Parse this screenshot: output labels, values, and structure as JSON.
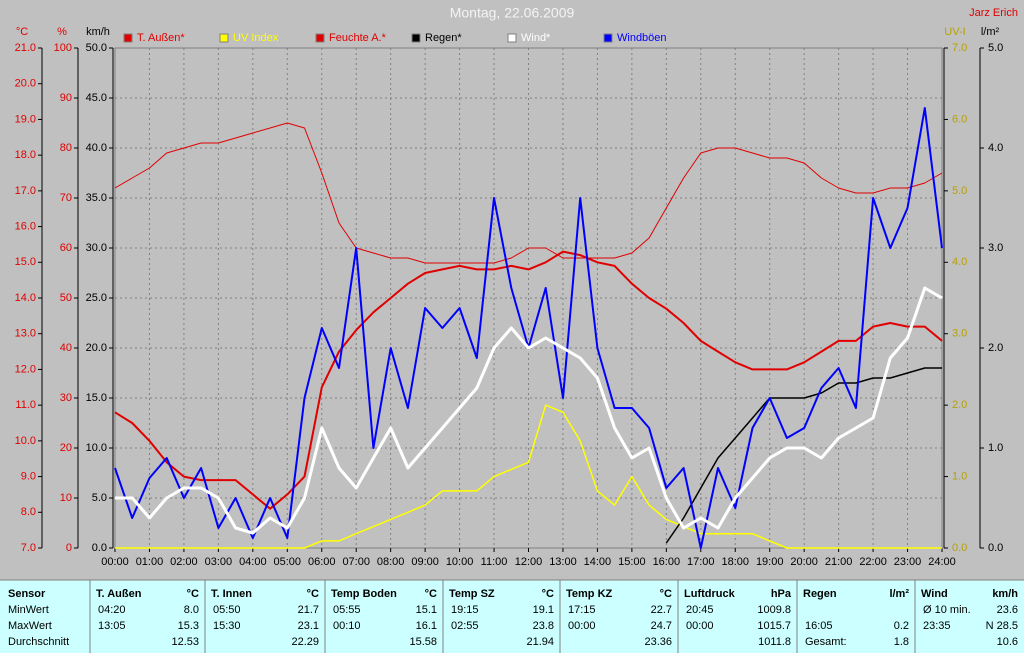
{
  "chart_data": {
    "type": "line",
    "title": "Montag, 22.06.2009",
    "author": "Jarz Erich",
    "x": [
      0,
      0.5,
      1,
      1.5,
      2,
      2.5,
      3,
      3.5,
      4,
      4.5,
      5,
      5.5,
      6,
      6.5,
      7,
      7.5,
      8,
      8.5,
      9,
      9.5,
      10,
      10.5,
      11,
      11.5,
      12,
      12.5,
      13,
      13.5,
      14,
      14.5,
      15,
      15.5,
      16,
      16.5,
      17,
      17.5,
      18,
      18.5,
      19,
      19.5,
      20,
      20.5,
      21,
      21.5,
      22,
      22.5,
      23,
      23.5,
      24
    ],
    "xlim": [
      0,
      24
    ],
    "xticks": [
      {
        "value": 0,
        "label": "00:00"
      },
      {
        "value": 1,
        "label": "01:00"
      },
      {
        "value": 2,
        "label": "02:00"
      },
      {
        "value": 3,
        "label": "03:00"
      },
      {
        "value": 4,
        "label": "04:00"
      },
      {
        "value": 5,
        "label": "05:00"
      },
      {
        "value": 6,
        "label": "06:00"
      },
      {
        "value": 7,
        "label": "07:00"
      },
      {
        "value": 8,
        "label": "08:00"
      },
      {
        "value": 9,
        "label": "09:00"
      },
      {
        "value": 10,
        "label": "10:00"
      },
      {
        "value": 11,
        "label": "11:00"
      },
      {
        "value": 12,
        "label": "12:00"
      },
      {
        "value": 13,
        "label": "13:00"
      },
      {
        "value": 14,
        "label": "14:00"
      },
      {
        "value": 15,
        "label": "15:00"
      },
      {
        "value": 16,
        "label": "16:00"
      },
      {
        "value": 17,
        "label": "17:00"
      },
      {
        "value": 18,
        "label": "18:00"
      },
      {
        "value": 19,
        "label": "19:00"
      },
      {
        "value": 20,
        "label": "20:00"
      },
      {
        "value": 21,
        "label": "21:00"
      },
      {
        "value": 22,
        "label": "22:00"
      },
      {
        "value": 23,
        "label": "23:00"
      },
      {
        "value": 24,
        "label": "24:00"
      }
    ],
    "grid": true,
    "y_axes": [
      {
        "title": "°C",
        "color": "#e00000",
        "lim": [
          7,
          21
        ],
        "ticks": [
          {
            "value": 7,
            "label": "7.0"
          },
          {
            "value": 8,
            "label": "8.0"
          },
          {
            "value": 9,
            "label": "9.0"
          },
          {
            "value": 10,
            "label": "10.0"
          },
          {
            "value": 11,
            "label": "11.0"
          },
          {
            "value": 12,
            "label": "12.0"
          },
          {
            "value": 13,
            "label": "13.0"
          },
          {
            "value": 14,
            "label": "14.0"
          },
          {
            "value": 15,
            "label": "15.0"
          },
          {
            "value": 16,
            "label": "16.0"
          },
          {
            "value": 17,
            "label": "17.0"
          },
          {
            "value": 18,
            "label": "18.0"
          },
          {
            "value": 19,
            "label": "19.0"
          },
          {
            "value": 20,
            "label": "20.0"
          },
          {
            "value": 21,
            "label": "21.0"
          }
        ]
      },
      {
        "title": "%",
        "color": "#e00000",
        "lim": [
          0,
          100
        ],
        "ticks": [
          0,
          10,
          20,
          30,
          40,
          50,
          60,
          70,
          80,
          90,
          100
        ]
      },
      {
        "title": "km/h",
        "color": "#000000",
        "lim": [
          0,
          50
        ],
        "ticks": [
          {
            "value": 0,
            "label": "0.0"
          },
          {
            "value": 5,
            "label": "5.0"
          },
          {
            "value": 10,
            "label": "10.0"
          },
          {
            "value": 15,
            "label": "15.0"
          },
          {
            "value": 20,
            "label": "20.0"
          },
          {
            "value": 25,
            "label": "25.0"
          },
          {
            "value": 30,
            "label": "30.0"
          },
          {
            "value": 35,
            "label": "35.0"
          },
          {
            "value": 40,
            "label": "40.0"
          },
          {
            "value": 45,
            "label": "45.0"
          },
          {
            "value": 50,
            "label": "50.0"
          }
        ]
      },
      {
        "title": "UV-I",
        "color": "#b8a000",
        "lim": [
          0,
          7
        ],
        "ticks": [
          {
            "value": 0,
            "label": "0.0"
          },
          {
            "value": 1,
            "label": "1.0"
          },
          {
            "value": 2,
            "label": "2.0"
          },
          {
            "value": 3,
            "label": "3.0"
          },
          {
            "value": 4,
            "label": "4.0"
          },
          {
            "value": 5,
            "label": "5.0"
          },
          {
            "value": 6,
            "label": "6.0"
          },
          {
            "value": 7,
            "label": "7.0"
          }
        ]
      },
      {
        "title": "l/m²",
        "color": "#000000",
        "lim": [
          0,
          5
        ],
        "ticks": [
          {
            "value": 0,
            "label": "0.0"
          },
          {
            "value": 1,
            "label": "1.0"
          },
          {
            "value": 2,
            "label": "2.0"
          },
          {
            "value": 3,
            "label": "3.0"
          },
          {
            "value": 4,
            "label": "4.0"
          },
          {
            "value": 5,
            "label": "5.0"
          }
        ]
      }
    ],
    "series": [
      {
        "name": "T. Außen*",
        "color": "#e00000",
        "axis": 0,
        "width": 2,
        "values": [
          10.8,
          10.5,
          10.0,
          9.4,
          9.0,
          8.9,
          8.9,
          8.9,
          8.5,
          8.1,
          8.5,
          9.0,
          11.5,
          12.5,
          13.1,
          13.6,
          14.0,
          14.4,
          14.7,
          14.8,
          14.9,
          14.8,
          14.8,
          14.9,
          14.8,
          15.0,
          15.3,
          15.2,
          15.0,
          14.9,
          14.4,
          14.0,
          13.7,
          13.3,
          12.8,
          12.5,
          12.2,
          12.0,
          12.0,
          12.0,
          12.2,
          12.5,
          12.8,
          12.8,
          13.2,
          13.3,
          13.2,
          13.2,
          12.8
        ]
      },
      {
        "name": "UV Index",
        "color": "#ffff00",
        "axis": 3,
        "width": 1.5,
        "values": [
          0,
          0,
          0,
          0,
          0,
          0,
          0,
          0,
          0,
          0,
          0,
          0,
          0.1,
          0.1,
          0.2,
          0.3,
          0.4,
          0.5,
          0.6,
          0.8,
          0.8,
          0.8,
          1.0,
          1.1,
          1.2,
          2.0,
          1.9,
          1.5,
          0.8,
          0.6,
          1.0,
          0.6,
          0.4,
          0.3,
          0.2,
          0.2,
          0.2,
          0.2,
          0.1,
          0,
          0,
          0,
          0,
          0,
          0,
          0,
          0,
          0,
          0
        ]
      },
      {
        "name": "Feuchte A.*",
        "color": "#e00000",
        "axis": 1,
        "width": 1,
        "values": [
          72,
          74,
          76,
          79,
          80,
          81,
          81,
          82,
          83,
          84,
          85,
          84,
          75,
          65,
          60,
          59,
          58,
          58,
          57,
          57,
          57,
          57,
          57,
          58,
          60,
          60,
          58,
          58,
          58,
          58,
          59,
          62,
          68,
          74,
          79,
          80,
          80,
          79,
          78,
          78,
          77,
          74,
          72,
          71,
          71,
          72,
          72,
          73,
          75
        ]
      },
      {
        "name": "Regen*",
        "color": "#000000",
        "axis": 4,
        "width": 1.5,
        "values": [
          null,
          null,
          null,
          null,
          null,
          null,
          null,
          null,
          null,
          null,
          null,
          null,
          null,
          null,
          null,
          null,
          null,
          null,
          null,
          null,
          null,
          null,
          null,
          null,
          null,
          null,
          null,
          null,
          null,
          null,
          null,
          null,
          0.05,
          0.3,
          0.6,
          0.9,
          1.1,
          1.3,
          1.5,
          1.5,
          1.5,
          1.55,
          1.65,
          1.65,
          1.7,
          1.7,
          1.75,
          1.8,
          1.8
        ]
      },
      {
        "name": "Wind*",
        "color": "#ffffff",
        "axis": 2,
        "width": 3,
        "values": [
          5,
          5,
          3,
          5,
          6,
          6,
          5,
          2,
          1.5,
          3,
          2,
          5,
          12,
          8,
          6,
          9,
          12,
          8,
          10,
          12,
          14,
          16,
          20,
          22,
          20,
          21,
          20,
          19,
          17,
          12,
          9,
          10,
          5,
          2,
          3,
          2,
          5,
          7,
          9,
          10,
          10,
          9,
          11,
          12,
          13,
          19,
          21,
          26,
          25
        ]
      },
      {
        "name": "Windböen",
        "color": "#0000ff",
        "axis": 2,
        "width": 2,
        "values": [
          8,
          3,
          7,
          9,
          5,
          8,
          2,
          5,
          1,
          5,
          1,
          15,
          22,
          18,
          30,
          10,
          20,
          14,
          24,
          22,
          24,
          19,
          35,
          26,
          20,
          26,
          15,
          35,
          20,
          14,
          14,
          12,
          6,
          8,
          0,
          8,
          4,
          12,
          15,
          11,
          12,
          16,
          18,
          14,
          35,
          30,
          34,
          44,
          30
        ]
      }
    ]
  },
  "table": {
    "row_labels": [
      "Sensor",
      "MinWert",
      "MaxWert",
      "Durchschnitt"
    ],
    "columns": [
      {
        "title": "T. Außen",
        "unit": "°C",
        "rows": [
          {
            "label": "04:20",
            "value": "8.0"
          },
          {
            "label": "13:05",
            "value": "15.3"
          },
          {
            "value": "12.53"
          }
        ]
      },
      {
        "title": "T. Innen",
        "unit": "°C",
        "rows": [
          {
            "label": "05:50",
            "value": "21.7"
          },
          {
            "label": "15:30",
            "value": "23.1"
          },
          {
            "value": "22.29"
          }
        ]
      },
      {
        "title": "Temp Boden",
        "unit": "°C",
        "rows": [
          {
            "label": "05:55",
            "value": "15.1"
          },
          {
            "label": "00:10",
            "value": "16.1"
          },
          {
            "value": "15.58"
          }
        ]
      },
      {
        "title": "Temp SZ",
        "unit": "°C",
        "rows": [
          {
            "label": "19:15",
            "value": "19.1"
          },
          {
            "label": "02:55",
            "value": "23.8"
          },
          {
            "value": "21.94"
          }
        ]
      },
      {
        "title": "Temp KZ",
        "unit": "°C",
        "rows": [
          {
            "label": "17:15",
            "value": "22.7"
          },
          {
            "label": "00:00",
            "value": "24.7"
          },
          {
            "value": "23.36"
          }
        ]
      },
      {
        "title": "Luftdruck",
        "unit": "hPa",
        "rows": [
          {
            "label": "20:45",
            "value": "1009.8"
          },
          {
            "label": "00:00",
            "value": "1015.7"
          },
          {
            "value": "1011.8"
          }
        ]
      },
      {
        "title": "Regen",
        "unit": "l/m²",
        "rows": [
          null,
          {
            "label": "16:05",
            "value": "0.2"
          },
          {
            "label": "Gesamt:",
            "value": "1.8"
          }
        ]
      },
      {
        "title": "Wind",
        "unit": "km/h",
        "rows": [
          {
            "label": "Ø 10 min.",
            "value": "23.6"
          },
          {
            "label": "23:35",
            "value": "N 28.5"
          },
          {
            "value": "10.6"
          }
        ]
      }
    ]
  }
}
